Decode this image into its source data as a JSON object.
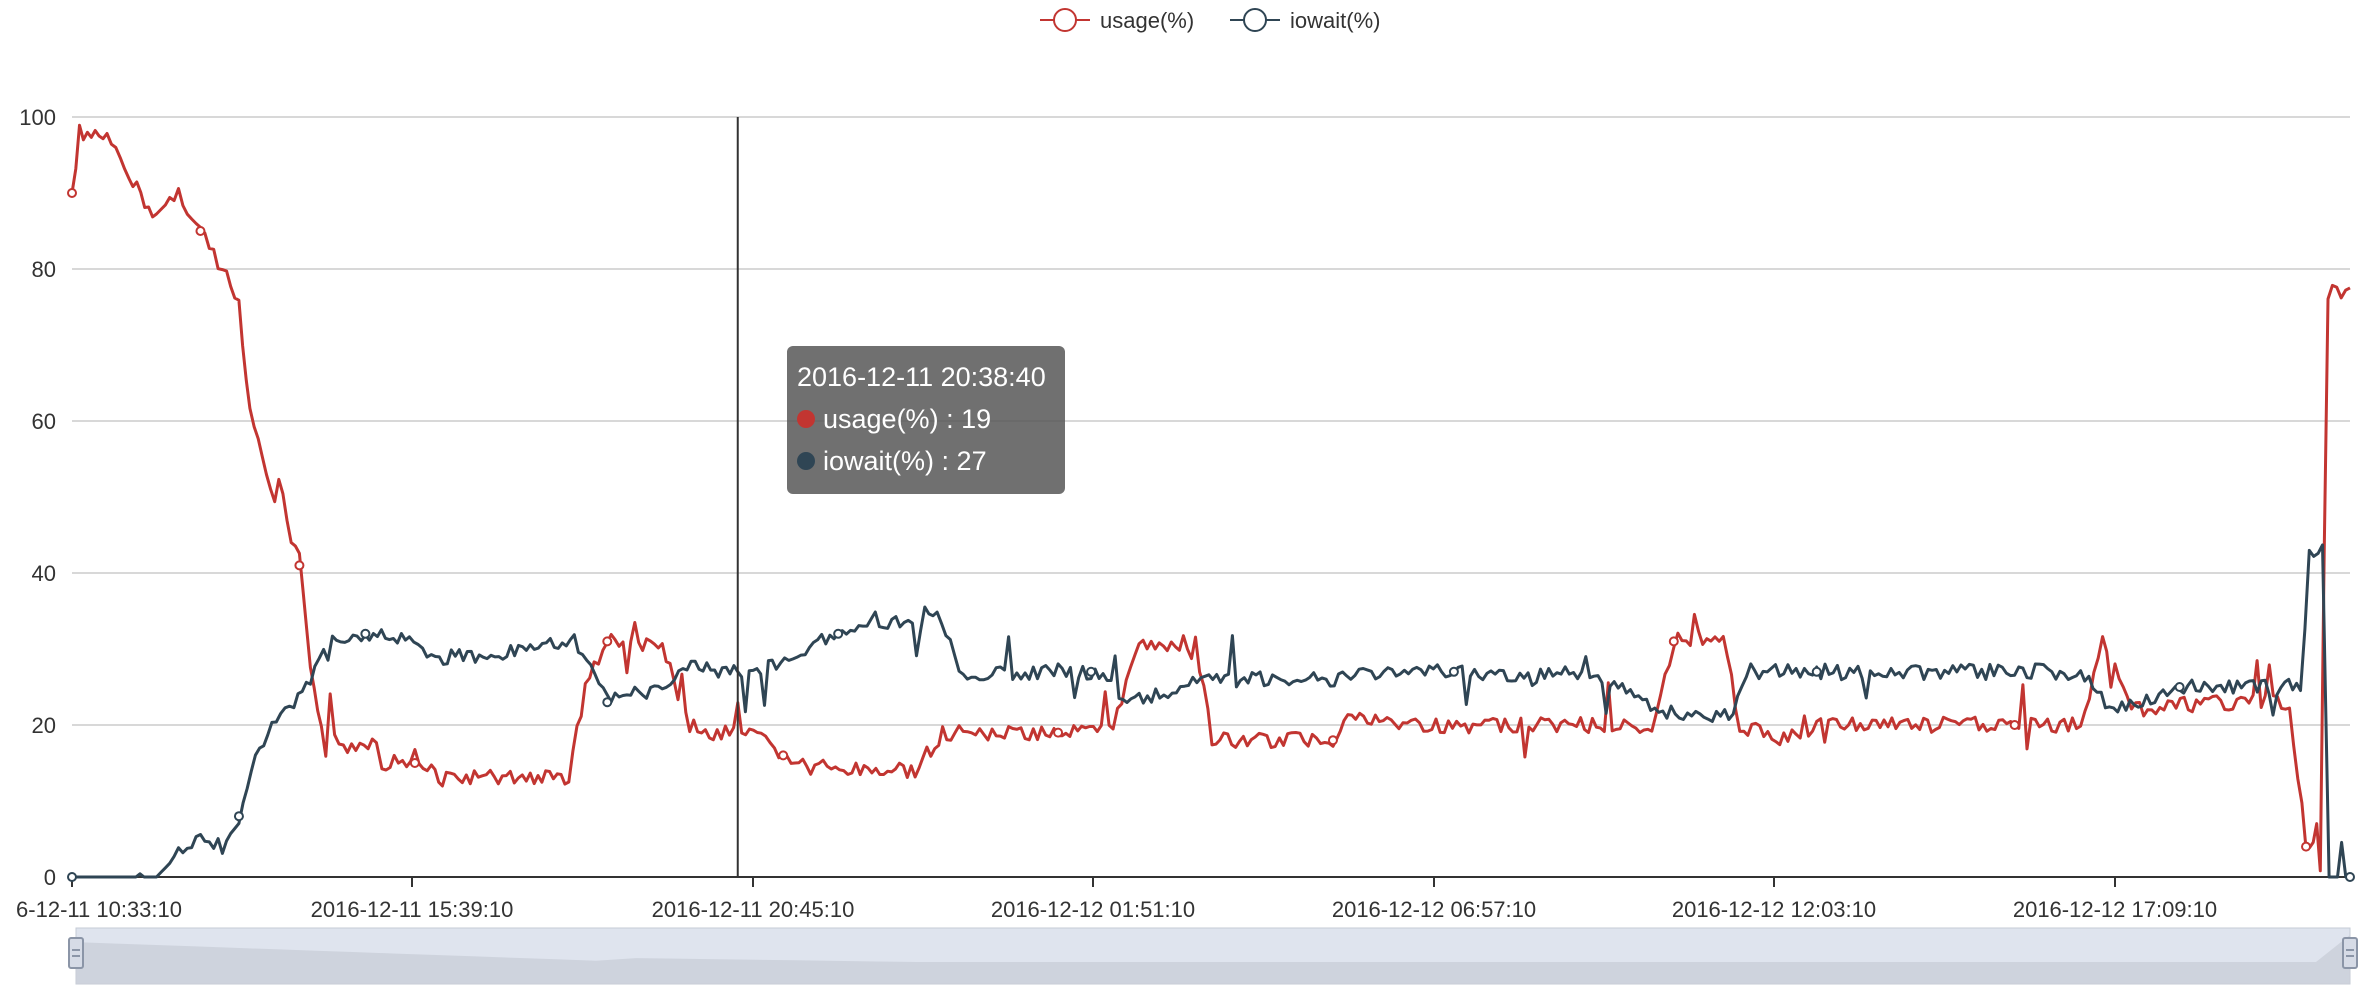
{
  "colors": {
    "usage": "#c23531",
    "iowait": "#2f4554",
    "grid": "#cccccc",
    "zoom_fill": "#dfe4ee"
  },
  "legend": [
    {
      "name": "usage(%)",
      "color": "#c23531"
    },
    {
      "name": "iowait(%)",
      "color": "#2f4554"
    }
  ],
  "tooltip": {
    "title": "2016-12-11 20:38:40",
    "rows": [
      {
        "series": "usage(%)",
        "sep": " : ",
        "value": "19",
        "color": "#c23531"
      },
      {
        "series": "iowait(%)",
        "sep": " : ",
        "value": "27",
        "color": "#2f4554"
      }
    ]
  },
  "chart_data": {
    "type": "line",
    "title": "",
    "xlabel": "",
    "ylabel": "",
    "ylim": [
      0,
      100
    ],
    "yticks": [
      0,
      20,
      40,
      60,
      80,
      100
    ],
    "xlim": [
      "2016-12-11 10:33:10",
      "2016-12-12 21:05:00"
    ],
    "xtick_labels": [
      "6-12-11 10:33:10",
      "2016-12-11 15:39:10",
      "2016-12-11 20:45:10",
      "2016-12-12 01:51:10",
      "2016-12-12 06:57:10",
      "2016-12-12 12:03:10",
      "2016-12-12 17:09:10"
    ],
    "grid": true,
    "legend_position": "top-center",
    "data_zoom_slider": true,
    "cursor_time": "2016-12-11 20:38:40",
    "series": [
      {
        "name": "usage(%)",
        "points": [
          [
            "2016-12-11 10:33:10",
            90
          ],
          [
            "2016-12-11 10:40:00",
            98
          ],
          [
            "2016-12-11 11:05:00",
            97
          ],
          [
            "2016-12-11 11:25:00",
            92
          ],
          [
            "2016-12-11 11:50:00",
            87
          ],
          [
            "2016-12-11 12:10:00",
            90
          ],
          [
            "2016-12-11 12:30:00",
            85
          ],
          [
            "2016-12-11 12:50:00",
            80
          ],
          [
            "2016-12-11 13:05:00",
            75
          ],
          [
            "2016-12-11 13:15:00",
            62
          ],
          [
            "2016-12-11 13:30:00",
            52
          ],
          [
            "2016-12-11 13:45:00",
            48
          ],
          [
            "2016-12-11 14:00:00",
            41
          ],
          [
            "2016-12-11 14:10:00",
            28
          ],
          [
            "2016-12-11 14:20:00",
            20
          ],
          [
            "2016-12-11 14:40:00",
            17
          ],
          [
            "2016-12-11 15:10:00",
            18
          ],
          [
            "2016-12-11 15:15:00",
            15
          ],
          [
            "2016-12-11 15:45:00",
            15
          ],
          [
            "2016-12-11 16:00:00",
            14
          ],
          [
            "2016-12-11 16:10:00",
            13
          ],
          [
            "2016-12-11 17:30:00",
            13
          ],
          [
            "2016-12-11 18:05:00",
            13
          ],
          [
            "2016-12-11 18:20:00",
            25
          ],
          [
            "2016-12-11 18:40:00",
            31
          ],
          [
            "2016-12-11 19:30:00",
            30
          ],
          [
            "2016-12-11 19:55:00",
            20
          ],
          [
            "2016-12-11 20:20:00",
            19
          ],
          [
            "2016-12-11 20:38:40",
            19
          ],
          [
            "2016-12-11 21:00:00",
            18
          ],
          [
            "2016-12-11 21:20:00",
            16
          ],
          [
            "2016-12-11 21:45:00",
            14
          ],
          [
            "2016-12-11 22:30:00",
            14
          ],
          [
            "2016-12-11 23:20:00",
            14
          ],
          [
            "2016-12-11 23:45:00",
            19
          ],
          [
            "2016-12-12 00:30:00",
            19
          ],
          [
            "2016-12-12 01:30:00",
            19
          ],
          [
            "2016-12-12 02:20:00",
            19
          ],
          [
            "2016-12-12 02:40:00",
            30
          ],
          [
            "2016-12-12 03:35:00",
            31
          ],
          [
            "2016-12-12 03:50:00",
            18
          ],
          [
            "2016-12-12 04:40:00",
            18
          ],
          [
            "2016-12-12 05:40:00",
            18
          ],
          [
            "2016-12-12 05:50:00",
            21
          ],
          [
            "2016-12-12 06:40:00",
            20
          ],
          [
            "2016-12-12 07:40:00",
            20
          ],
          [
            "2016-12-12 09:00:00",
            20
          ],
          [
            "2016-12-12 10:30:00",
            20
          ],
          [
            "2016-12-12 10:50:00",
            31
          ],
          [
            "2016-12-12 11:35:00",
            32
          ],
          [
            "2016-12-12 11:50:00",
            20
          ],
          [
            "2016-12-12 12:30:00",
            18
          ],
          [
            "2016-12-12 13:00:00",
            20
          ],
          [
            "2016-12-12 14:30:00",
            20
          ],
          [
            "2016-12-12 16:00:00",
            20
          ],
          [
            "2016-12-12 17:00:00",
            20
          ],
          [
            "2016-12-12 17:20:00",
            31
          ],
          [
            "2016-12-12 17:50:00",
            22
          ],
          [
            "2016-12-12 19:00:00",
            23
          ],
          [
            "2016-12-12 20:10:00",
            23
          ],
          [
            "2016-12-12 20:25:00",
            4
          ],
          [
            "2016-12-12 20:38:00",
            7
          ],
          [
            "2016-12-12 20:45:00",
            77
          ],
          [
            "2016-12-12 21:05:00",
            77
          ]
        ]
      },
      {
        "name": "iowait(%)",
        "points": [
          [
            "2016-12-11 10:33:10",
            0
          ],
          [
            "2016-12-11 11:20:00",
            0
          ],
          [
            "2016-12-11 11:50:00",
            0
          ],
          [
            "2016-12-11 12:10:00",
            3
          ],
          [
            "2016-12-11 12:30:00",
            5
          ],
          [
            "2016-12-11 12:50:00",
            4
          ],
          [
            "2016-12-11 13:05:00",
            8
          ],
          [
            "2016-12-11 13:20:00",
            15
          ],
          [
            "2016-12-11 13:35:00",
            20
          ],
          [
            "2016-12-11 13:55:00",
            23
          ],
          [
            "2016-12-11 14:10:00",
            26
          ],
          [
            "2016-12-11 14:30:00",
            31
          ],
          [
            "2016-12-11 15:00:00",
            32
          ],
          [
            "2016-12-11 15:40:00",
            31
          ],
          [
            "2016-12-11 16:00:00",
            29
          ],
          [
            "2016-12-11 16:40:00",
            29
          ],
          [
            "2016-12-11 17:30:00",
            30
          ],
          [
            "2016-12-11 18:10:00",
            31
          ],
          [
            "2016-12-11 18:40:00",
            23
          ],
          [
            "2016-12-11 19:30:00",
            25
          ],
          [
            "2016-12-11 20:00:00",
            28
          ],
          [
            "2016-12-11 20:38:40",
            27
          ],
          [
            "2016-12-11 21:10:00",
            28
          ],
          [
            "2016-12-11 21:40:00",
            30
          ],
          [
            "2016-12-11 22:10:00",
            32
          ],
          [
            "2016-12-11 22:40:00",
            34
          ],
          [
            "2016-12-11 23:10:00",
            33
          ],
          [
            "2016-12-11 23:40:00",
            35
          ],
          [
            "2016-12-12 00:00:00",
            27
          ],
          [
            "2016-12-12 01:00:00",
            27
          ],
          [
            "2016-12-12 02:00:00",
            27
          ],
          [
            "2016-12-12 02:40:00",
            23
          ],
          [
            "2016-12-12 03:40:00",
            26
          ],
          [
            "2016-12-12 04:30:00",
            26
          ],
          [
            "2016-12-12 05:30:00",
            26
          ],
          [
            "2016-12-12 06:30:00",
            27
          ],
          [
            "2016-12-12 07:30:00",
            27
          ],
          [
            "2016-12-12 08:30:00",
            26
          ],
          [
            "2016-12-12 09:30:00",
            27
          ],
          [
            "2016-12-12 10:40:00",
            22
          ],
          [
            "2016-12-12 11:40:00",
            21
          ],
          [
            "2016-12-12 12:00:00",
            27
          ],
          [
            "2016-12-12 13:00:00",
            27
          ],
          [
            "2016-12-12 14:00:00",
            27
          ],
          [
            "2016-12-12 15:00:00",
            27
          ],
          [
            "2016-12-12 16:00:00",
            27
          ],
          [
            "2016-12-12 17:00:00",
            27
          ],
          [
            "2016-12-12 17:30:00",
            22
          ],
          [
            "2016-12-12 18:30:00",
            25
          ],
          [
            "2016-12-12 19:30:00",
            25
          ],
          [
            "2016-12-12 20:20:00",
            25
          ],
          [
            "2016-12-12 20:28:00",
            42
          ],
          [
            "2016-12-12 20:40:00",
            43
          ],
          [
            "2016-12-12 20:46:00",
            0
          ],
          [
            "2016-12-12 21:05:00",
            0
          ]
        ]
      }
    ]
  }
}
